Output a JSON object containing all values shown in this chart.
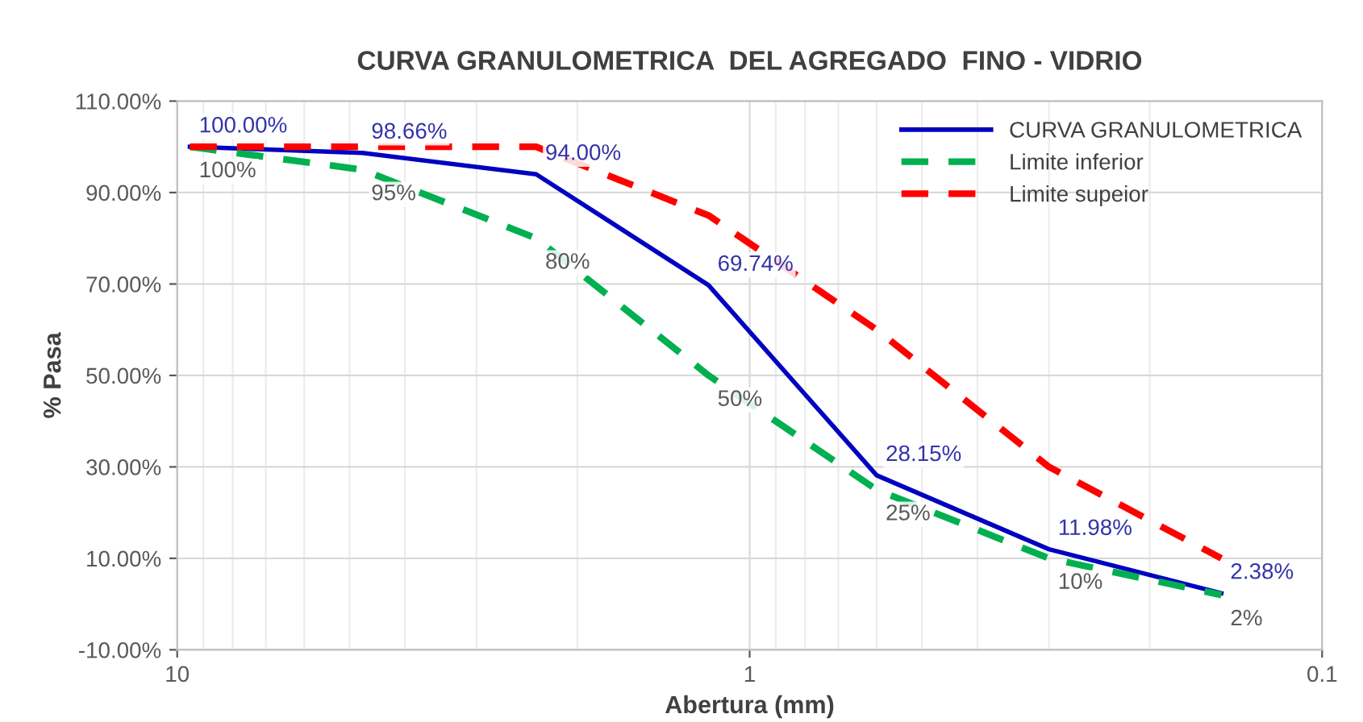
{
  "chart_data": {
    "type": "line",
    "title": "CURVA GRANULOMETRICA  DEL AGREGADO  FINO - VIDRIO",
    "xlabel": "Abertura (mm)",
    "ylabel": "% Pasa",
    "x": [
      9.5,
      4.75,
      2.36,
      1.18,
      0.6,
      0.3,
      0.15
    ],
    "series": [
      {
        "name": "CURVA GRANULOMETRICA",
        "color": "#0000c0",
        "line_style": "solid",
        "values": [
          100.0,
          98.66,
          94.0,
          69.74,
          28.15,
          11.98,
          2.38
        ],
        "value_labels": [
          "100.00%",
          "98.66%",
          "94.00%",
          "69.74%",
          "28.15%",
          "11.98%",
          "2.38%"
        ]
      },
      {
        "name": "Limite inferior",
        "color": "#00b050",
        "line_style": "dashed",
        "values": [
          100,
          95,
          80,
          50,
          25,
          10,
          2
        ],
        "value_labels": [
          "100%",
          "95%",
          "80%",
          "50%",
          "25%",
          "10%",
          "2%"
        ]
      },
      {
        "name": "Limite supeior",
        "color": "#ff0000",
        "line_style": "dashed",
        "values": [
          100,
          100,
          100,
          85,
          60,
          30,
          10
        ]
      }
    ],
    "log": "x",
    "xlim": [
      10,
      0.1
    ],
    "xticks": [
      10,
      1,
      0.1
    ],
    "ylim": [
      -10,
      110
    ],
    "yticks": [
      {
        "value": -10,
        "label": "-10.00%"
      },
      {
        "value": 10,
        "label": "10.00%"
      },
      {
        "value": 30,
        "label": "30.00%"
      },
      {
        "value": 50,
        "label": "50.00%"
      },
      {
        "value": 70,
        "label": "70.00%"
      },
      {
        "value": 90,
        "label": "90.00%"
      },
      {
        "value": 110,
        "label": "110.00%"
      }
    ],
    "grid": true,
    "legend": "top right"
  }
}
